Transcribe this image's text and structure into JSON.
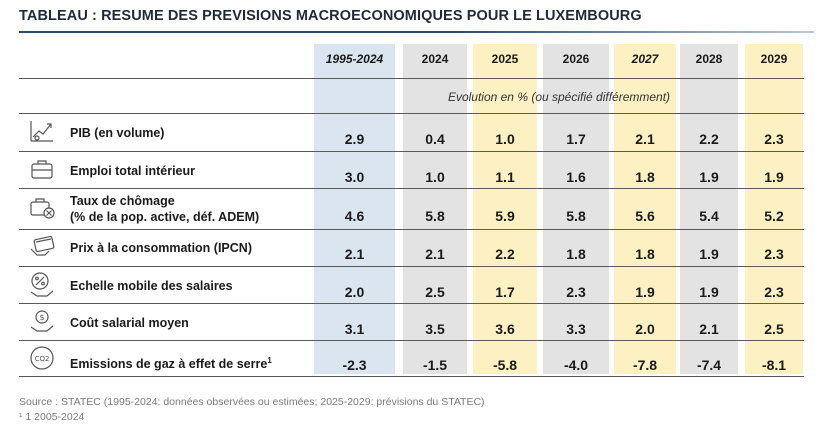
{
  "title": "TABLEAU : RESUME DES PREVISIONS MACROECONOMIQUES POUR LE LUXEMBOURG",
  "columns": [
    "1995-2024",
    "2024",
    "2025",
    "2026",
    "2027",
    "2028",
    "2029"
  ],
  "subtitle": "Evolution en % (ou spécifié différemment)",
  "rows": [
    {
      "label": "PIB (en volume)",
      "label2": "",
      "icon": "growth-chart-icon",
      "values": [
        "2.9",
        "0.4",
        "1.0",
        "1.7",
        "2.1",
        "2.2",
        "2.3"
      ]
    },
    {
      "label": "Emploi total intérieur",
      "label2": "",
      "icon": "briefcase-icon",
      "values": [
        "3.0",
        "1.0",
        "1.1",
        "1.6",
        "1.8",
        "1.9",
        "1.9"
      ]
    },
    {
      "label": "Taux de chômage",
      "label2": "(% de la pop. active, déf. ADEM)",
      "icon": "briefcase-cross-icon",
      "values": [
        "4.6",
        "5.8",
        "5.9",
        "5.8",
        "5.6",
        "5.4",
        "5.2"
      ]
    },
    {
      "label": "Prix à la consommation (IPCN)",
      "label2": "",
      "icon": "credit-card-icon",
      "values": [
        "2.1",
        "2.1",
        "2.2",
        "1.8",
        "1.8",
        "1.9",
        "2.3"
      ]
    },
    {
      "label": "Echelle mobile des salaires",
      "label2": "",
      "icon": "percent-hand-icon",
      "values": [
        "2.0",
        "2.5",
        "1.7",
        "2.3",
        "1.9",
        "1.9",
        "2.3"
      ]
    },
    {
      "label": "Coût salarial moyen",
      "label2": "",
      "icon": "coin-hand-icon",
      "values": [
        "3.1",
        "3.5",
        "3.6",
        "3.3",
        "2.0",
        "2.1",
        "2.5"
      ]
    },
    {
      "label": "Emissions de gaz à effet de serre",
      "label_sup": "1",
      "label2": "",
      "icon": "co2-cloud-icon",
      "values": [
        "-2.3",
        "-1.5",
        "-5.8",
        "-4.0",
        "-7.8",
        "-7.4",
        "-8.1"
      ]
    }
  ],
  "footer": {
    "source": "Source : STATEC (1995-2024: données observées ou estimées; 2025-2029: prévisions du STATEC)",
    "note": "¹ 1 2005-2024"
  }
}
